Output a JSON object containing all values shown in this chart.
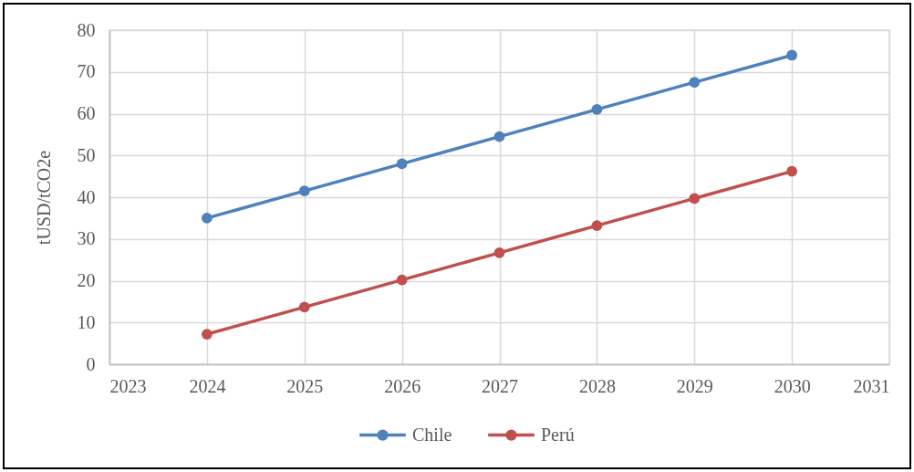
{
  "chart_data": {
    "type": "line",
    "ylabel": "tUSD/tCO2e",
    "x": [
      2024,
      2025,
      2026,
      2027,
      2028,
      2029,
      2030
    ],
    "series": [
      {
        "name": "Chile",
        "color": "#4f81bd",
        "values": [
          35,
          41.5,
          48,
          54.5,
          61,
          67.5,
          74
        ]
      },
      {
        "name": "Perú",
        "color": "#c0504d",
        "values": [
          7.2,
          13.7,
          20.2,
          26.7,
          33.2,
          39.7,
          46.2
        ]
      }
    ],
    "xlim": [
      2023,
      2031
    ],
    "xticks": [
      2023,
      2024,
      2025,
      2026,
      2027,
      2028,
      2029,
      2030,
      2031
    ],
    "ylim": [
      0,
      80
    ],
    "yticks": [
      0,
      10,
      20,
      30,
      40,
      50,
      60,
      70,
      80
    ],
    "grid": true,
    "legend": "bottom",
    "marker": "circle",
    "line_style": "solid"
  }
}
